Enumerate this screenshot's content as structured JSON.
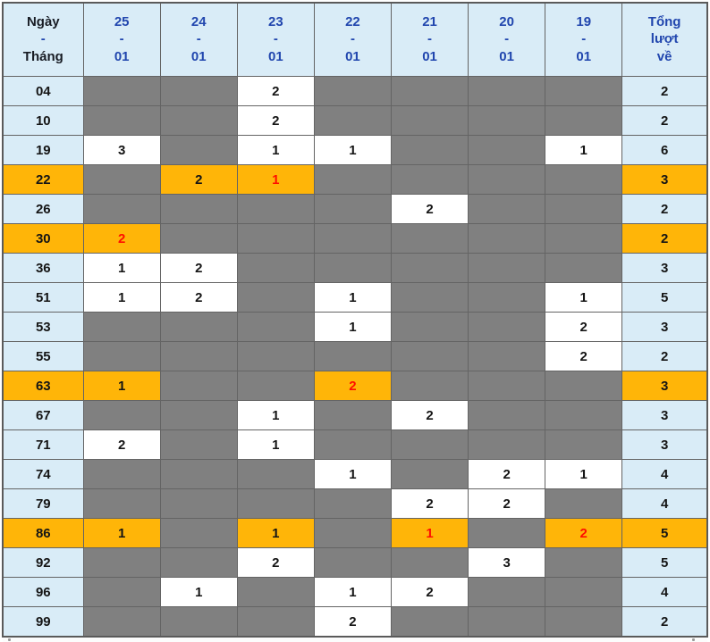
{
  "table": {
    "corner_header": {
      "line1": "Ngày",
      "line2": "-",
      "line3": "Tháng"
    },
    "date_columns": [
      {
        "day": "25",
        "sep": "-",
        "month": "01"
      },
      {
        "day": "24",
        "sep": "-",
        "month": "01"
      },
      {
        "day": "23",
        "sep": "-",
        "month": "01"
      },
      {
        "day": "22",
        "sep": "-",
        "month": "01"
      },
      {
        "day": "21",
        "sep": "-",
        "month": "01"
      },
      {
        "day": "20",
        "sep": "-",
        "month": "01"
      },
      {
        "day": "19",
        "sep": "-",
        "month": "01"
      }
    ],
    "total_header": {
      "line1": "Tổng",
      "line2": "lượt",
      "line3": "về"
    },
    "rows": [
      {
        "label": "04",
        "highlight": false,
        "cells": [
          null,
          null,
          {
            "v": "2"
          },
          null,
          null,
          null,
          null
        ],
        "total": "2"
      },
      {
        "label": "10",
        "highlight": false,
        "cells": [
          null,
          null,
          {
            "v": "2"
          },
          null,
          null,
          null,
          null
        ],
        "total": "2"
      },
      {
        "label": "19",
        "highlight": false,
        "cells": [
          {
            "v": "3"
          },
          null,
          {
            "v": "1"
          },
          {
            "v": "1"
          },
          null,
          null,
          {
            "v": "1"
          }
        ],
        "total": "6"
      },
      {
        "label": "22",
        "highlight": true,
        "cells": [
          null,
          {
            "v": "2"
          },
          {
            "v": "1",
            "red": true
          },
          null,
          null,
          null,
          null
        ],
        "total": "3"
      },
      {
        "label": "26",
        "highlight": false,
        "cells": [
          null,
          null,
          null,
          null,
          {
            "v": "2"
          },
          null,
          null
        ],
        "total": "2"
      },
      {
        "label": "30",
        "highlight": true,
        "cells": [
          {
            "v": "2",
            "red": true
          },
          null,
          null,
          null,
          null,
          null,
          null
        ],
        "total": "2"
      },
      {
        "label": "36",
        "highlight": false,
        "cells": [
          {
            "v": "1"
          },
          {
            "v": "2"
          },
          null,
          null,
          null,
          null,
          null
        ],
        "total": "3"
      },
      {
        "label": "51",
        "highlight": false,
        "cells": [
          {
            "v": "1"
          },
          {
            "v": "2"
          },
          null,
          {
            "v": "1"
          },
          null,
          null,
          {
            "v": "1"
          }
        ],
        "total": "5"
      },
      {
        "label": "53",
        "highlight": false,
        "cells": [
          null,
          null,
          null,
          {
            "v": "1"
          },
          null,
          null,
          {
            "v": "2"
          }
        ],
        "total": "3"
      },
      {
        "label": "55",
        "highlight": false,
        "cells": [
          null,
          null,
          null,
          null,
          null,
          null,
          {
            "v": "2"
          }
        ],
        "total": "2"
      },
      {
        "label": "63",
        "highlight": true,
        "cells": [
          {
            "v": "1"
          },
          null,
          null,
          {
            "v": "2",
            "red": true
          },
          null,
          null,
          null
        ],
        "total": "3"
      },
      {
        "label": "67",
        "highlight": false,
        "cells": [
          null,
          null,
          {
            "v": "1"
          },
          null,
          {
            "v": "2"
          },
          null,
          null
        ],
        "total": "3"
      },
      {
        "label": "71",
        "highlight": false,
        "cells": [
          {
            "v": "2"
          },
          null,
          {
            "v": "1"
          },
          null,
          null,
          null,
          null
        ],
        "total": "3"
      },
      {
        "label": "74",
        "highlight": false,
        "cells": [
          null,
          null,
          null,
          {
            "v": "1"
          },
          null,
          {
            "v": "2"
          },
          {
            "v": "1"
          }
        ],
        "total": "4"
      },
      {
        "label": "79",
        "highlight": false,
        "cells": [
          null,
          null,
          null,
          null,
          {
            "v": "2"
          },
          {
            "v": "2"
          },
          null
        ],
        "total": "4"
      },
      {
        "label": "86",
        "highlight": true,
        "cells": [
          {
            "v": "1"
          },
          null,
          {
            "v": "1"
          },
          null,
          {
            "v": "1",
            "red": true
          },
          null,
          {
            "v": "2",
            "red": true
          }
        ],
        "total": "5"
      },
      {
        "label": "92",
        "highlight": false,
        "cells": [
          null,
          null,
          {
            "v": "2"
          },
          null,
          null,
          {
            "v": "3"
          },
          null
        ],
        "total": "5"
      },
      {
        "label": "96",
        "highlight": false,
        "cells": [
          null,
          {
            "v": "1"
          },
          null,
          {
            "v": "1"
          },
          {
            "v": "2"
          },
          null,
          null
        ],
        "total": "4"
      },
      {
        "label": "99",
        "highlight": false,
        "cells": [
          null,
          null,
          null,
          {
            "v": "2"
          },
          null,
          null,
          null
        ],
        "total": "2"
      }
    ]
  },
  "colors": {
    "header_bg": "#d9ecf7",
    "empty_cell": "#808080",
    "highlight": "#ffb508",
    "date_text": "#2146ae",
    "red_text": "#ff0f00",
    "border": "#646464"
  }
}
